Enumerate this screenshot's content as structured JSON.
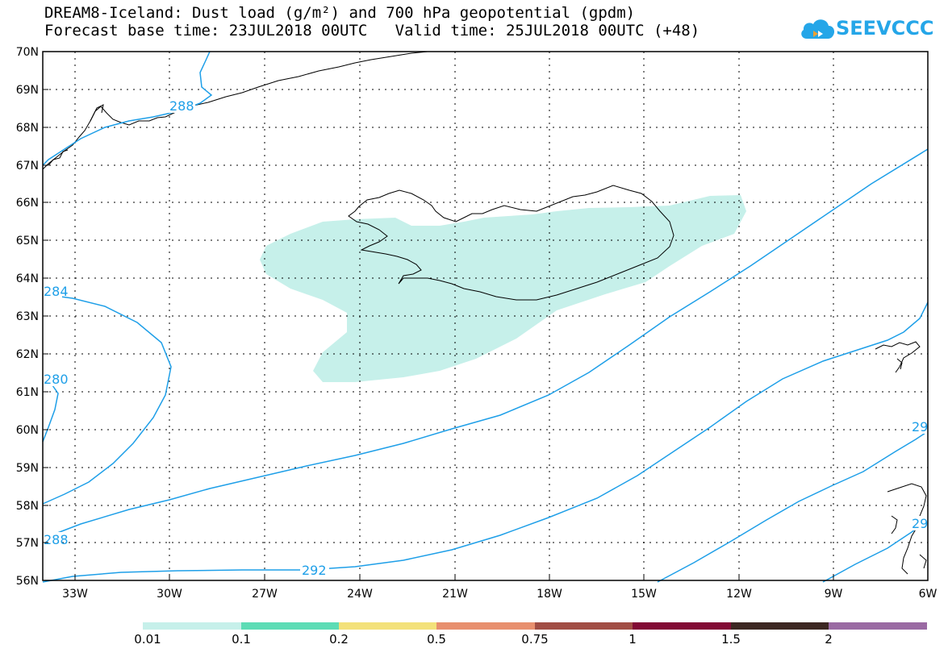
{
  "title": {
    "line1": "DREAM8-Iceland: Dust load (g/m²) and 700 hPa geopotential (gpdm)",
    "line2": "Forecast base time: 23JUL2018 00UTC   Valid time: 25JUL2018 00UTC (+48)"
  },
  "logo": {
    "text": "SEEVCCC",
    "icon": "cloud-icon",
    "color": "#25a6e8"
  },
  "map": {
    "lat_labels": [
      "56N",
      "57N",
      "58N",
      "59N",
      "60N",
      "61N",
      "62N",
      "63N",
      "64N",
      "65N",
      "66N",
      "67N",
      "68N",
      "69N",
      "70N"
    ],
    "lon_labels": [
      "33W",
      "30W",
      "27W",
      "24W",
      "21W",
      "18W",
      "15W",
      "12W",
      "9W",
      "6W"
    ],
    "contour_labels": [
      "288",
      "292",
      "284",
      "280",
      "288",
      "29",
      "29"
    ],
    "contour_color": "#1e9fe8",
    "dust_color": "#c6f0ea",
    "coastline_color": "#000000"
  },
  "colorbar": {
    "labels": [
      "0.01",
      "0.1",
      "0.2",
      "0.5",
      "0.75",
      "1",
      "1.5",
      "2"
    ],
    "colors": [
      "#c6f0ea",
      "#5cdcb5",
      "#f3e17a",
      "#e88f6e",
      "#a14d44",
      "#820934",
      "#3c2722",
      "#9a6aa3"
    ]
  }
}
